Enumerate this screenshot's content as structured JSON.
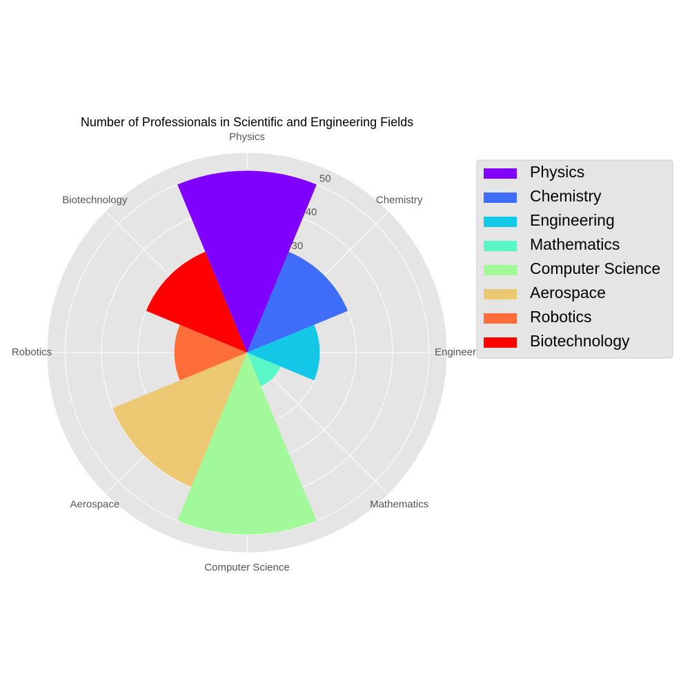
{
  "chart_data": {
    "type": "polar-bar",
    "title": "Number of Professionals in Scientific and Engineering Fields",
    "categories": [
      "Physics",
      "Chemistry",
      "Engineering",
      "Mathematics",
      "Computer Science",
      "Aerospace",
      "Robotics",
      "Biotechnology"
    ],
    "values": [
      50,
      30,
      20,
      10,
      50,
      40,
      20,
      30
    ],
    "colors": [
      "#8000ff",
      "#3e6ef9",
      "#12c8e6",
      "#5af7c6",
      "#a2f99a",
      "#ecc873",
      "#ff6e3a",
      "#ff0000"
    ],
    "r_ticks": [
      10,
      20,
      30,
      40,
      50
    ],
    "r_tick_labels": [
      "",
      "",
      "30",
      "40",
      "50"
    ],
    "rlim": [
      0,
      55
    ],
    "grid": true,
    "legend": {
      "placement": "right",
      "entries": [
        "Physics",
        "Chemistry",
        "Engineering",
        "Mathematics",
        "Computer Science",
        "Aerospace",
        "Robotics",
        "Biotechnology"
      ]
    },
    "style": {
      "plot_background": "#e5e5e5",
      "grid_color": "#ffffff",
      "legend_background": "#e5e5e5"
    }
  }
}
